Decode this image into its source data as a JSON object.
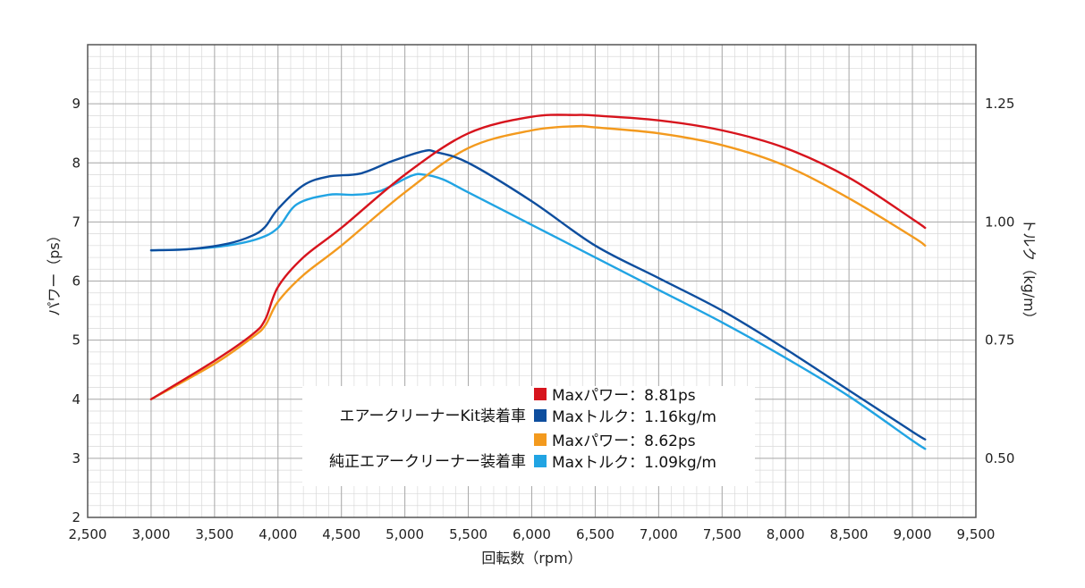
{
  "chart_data": {
    "type": "line",
    "xlabel": "回転数（rpm）",
    "ylabel_left": "パワー（ps）",
    "ylabel_right": "トルク（kg/m）",
    "x_range": [
      2500,
      9500
    ],
    "x_ticks": [
      2500,
      3000,
      3500,
      4000,
      4500,
      5000,
      5500,
      6000,
      6500,
      7000,
      7500,
      8000,
      8500,
      9000,
      9500
    ],
    "x_tick_labels": [
      "2,500",
      "3,000",
      "3,500",
      "4,000",
      "4,500",
      "5,000",
      "5,500",
      "6,000",
      "6,500",
      "7,000",
      "7,500",
      "8,000",
      "8,500",
      "9,000",
      "9,500"
    ],
    "y_left_range": [
      2,
      10
    ],
    "y_left_ticks": [
      2,
      3,
      4,
      5,
      6,
      7,
      8,
      9
    ],
    "y_left_tick_labels": [
      "2",
      "3",
      "4",
      "5",
      "6",
      "7",
      "8",
      "9"
    ],
    "y_right_ticks": [
      0.5,
      0.75,
      1.0,
      1.25
    ],
    "y_right_tick_labels": [
      "0.50",
      "0.75",
      "1.00",
      "1.25"
    ],
    "grid": true,
    "series": [
      {
        "name": "Kit Power",
        "color": "#d7141d",
        "axis": "left",
        "points": [
          [
            3000,
            4.0
          ],
          [
            3500,
            4.65
          ],
          [
            3800,
            5.1
          ],
          [
            3900,
            5.35
          ],
          [
            4000,
            5.9
          ],
          [
            4200,
            6.4
          ],
          [
            4500,
            6.9
          ],
          [
            5000,
            7.8
          ],
          [
            5500,
            8.5
          ],
          [
            6000,
            8.78
          ],
          [
            6350,
            8.81
          ],
          [
            6500,
            8.8
          ],
          [
            7000,
            8.72
          ],
          [
            7500,
            8.55
          ],
          [
            8000,
            8.25
          ],
          [
            8500,
            7.75
          ],
          [
            9000,
            7.05
          ],
          [
            9100,
            6.9
          ]
        ]
      },
      {
        "name": "Kit Torque",
        "color": "#0e4e9e",
        "axis": "left",
        "points": [
          [
            3000,
            6.52
          ],
          [
            3300,
            6.54
          ],
          [
            3600,
            6.63
          ],
          [
            3800,
            6.77
          ],
          [
            3900,
            6.92
          ],
          [
            4000,
            7.22
          ],
          [
            4200,
            7.62
          ],
          [
            4400,
            7.77
          ],
          [
            4650,
            7.82
          ],
          [
            4900,
            8.03
          ],
          [
            5150,
            8.2
          ],
          [
            5250,
            8.18
          ],
          [
            5500,
            8.0
          ],
          [
            6000,
            7.35
          ],
          [
            6500,
            6.6
          ],
          [
            7000,
            6.05
          ],
          [
            7500,
            5.5
          ],
          [
            8000,
            4.85
          ],
          [
            8500,
            4.15
          ],
          [
            9000,
            3.45
          ],
          [
            9100,
            3.32
          ]
        ]
      },
      {
        "name": "Stock Power",
        "color": "#f39a1e",
        "axis": "left",
        "points": [
          [
            3000,
            4.0
          ],
          [
            3500,
            4.6
          ],
          [
            3800,
            5.05
          ],
          [
            3900,
            5.25
          ],
          [
            4000,
            5.65
          ],
          [
            4200,
            6.1
          ],
          [
            4500,
            6.6
          ],
          [
            5000,
            7.5
          ],
          [
            5500,
            8.25
          ],
          [
            6000,
            8.55
          ],
          [
            6350,
            8.62
          ],
          [
            6500,
            8.6
          ],
          [
            7000,
            8.5
          ],
          [
            7500,
            8.3
          ],
          [
            8000,
            7.95
          ],
          [
            8500,
            7.4
          ],
          [
            9000,
            6.75
          ],
          [
            9100,
            6.6
          ]
        ]
      },
      {
        "name": "Stock Torque",
        "color": "#21a4e3",
        "axis": "left",
        "points": [
          [
            3000,
            6.52
          ],
          [
            3300,
            6.54
          ],
          [
            3600,
            6.6
          ],
          [
            3850,
            6.72
          ],
          [
            4000,
            6.9
          ],
          [
            4150,
            7.3
          ],
          [
            4400,
            7.46
          ],
          [
            4600,
            7.46
          ],
          [
            4800,
            7.52
          ],
          [
            5050,
            7.78
          ],
          [
            5150,
            7.8
          ],
          [
            5300,
            7.72
          ],
          [
            5500,
            7.5
          ],
          [
            6000,
            6.95
          ],
          [
            6500,
            6.4
          ],
          [
            7000,
            5.85
          ],
          [
            7500,
            5.3
          ],
          [
            8000,
            4.7
          ],
          [
            8500,
            4.05
          ],
          [
            9000,
            3.3
          ],
          [
            9100,
            3.16
          ]
        ]
      }
    ],
    "legend": {
      "groups": [
        {
          "name": "エアークリーナーKit装着車",
          "entries": [
            {
              "color": "#d7141d",
              "label": "Maxパワー：8.81ps"
            },
            {
              "color": "#0e4e9e",
              "label": "Maxトルク：1.16kg/m"
            }
          ]
        },
        {
          "name": "純正エアークリーナー装着車",
          "entries": [
            {
              "color": "#f39a1e",
              "label": "Maxパワー：8.62ps"
            },
            {
              "color": "#21a4e3",
              "label": "Maxトルク：1.09kg/m"
            }
          ]
        }
      ]
    }
  }
}
